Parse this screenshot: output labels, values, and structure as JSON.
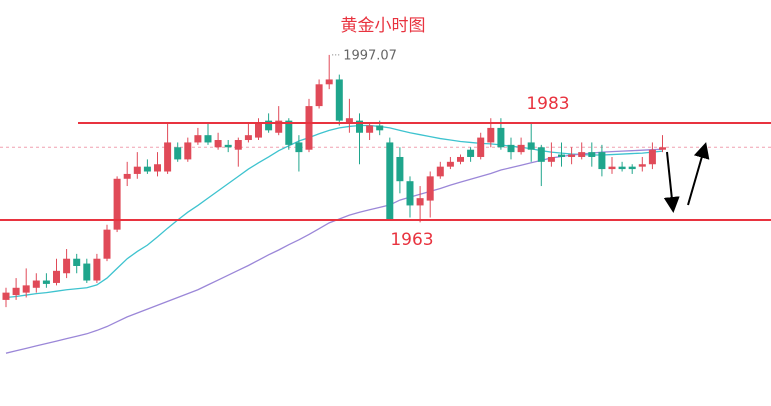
{
  "chart_data": {
    "type": "candlestick",
    "title": "黄金小时图",
    "max_label": 1997.07,
    "ylim": [
      1924.6,
      2008.4
    ],
    "up_color": "#e04a58",
    "down_color": "#1fa58c",
    "open": [
      1946.5,
      1947.5,
      1948,
      1949,
      1950.5,
      1950,
      1952,
      1955,
      1954,
      1950.5,
      1955,
      1961,
      1971.5,
      1972.5,
      1974,
      1973,
      1973,
      1978,
      1975.5,
      1979,
      1980.5,
      1978,
      1978.5,
      1977.5,
      1979.5,
      1980,
      1983.5,
      1981,
      1983.5,
      1979,
      1977.5,
      1986.5,
      1991,
      1992,
      1983,
      1983.5,
      1981,
      1982.5,
      1979,
      1976,
      1971,
      1966,
      1967,
      1972,
      1974,
      1975,
      1977.5,
      1976,
      1979,
      1982,
      1978.5,
      1977,
      1979,
      1978,
      1975,
      1976.5,
      1976,
      1976,
      1977,
      1977,
      1973.5,
      1974,
      1974,
      1974,
      1974.5,
      1977.5
    ],
    "high": [
      1949,
      1951,
      1953,
      1952,
      1952,
      1955,
      1957,
      1956,
      1955,
      1956,
      1962,
      1972,
      1975,
      1977,
      1975.5,
      1977,
      1983,
      1979,
      1980,
      1982,
      1983,
      1981,
      1979.5,
      1980,
      1983,
      1984,
      1985,
      1986.5,
      1984,
      1980.5,
      1988,
      1992,
      1997.07,
      1993,
      1988,
      1985,
      1983,
      1983.5,
      1980,
      1978,
      1972,
      1970,
      1973,
      1975,
      1976,
      1976.5,
      1978,
      1981,
      1984,
      1984,
      1980,
      1980,
      1983,
      1978.5,
      1979,
      1979,
      1978,
      1979,
      1979,
      1978.5,
      1976,
      1975,
      1974.5,
      1976,
      1979,
      1980.5
    ],
    "low": [
      1945,
      1946.5,
      1947,
      1948,
      1949,
      1949.5,
      1951,
      1952,
      1950,
      1950,
      1954.5,
      1960.5,
      1970,
      1971.5,
      1972.5,
      1972,
      1972.5,
      1975,
      1975,
      1978.5,
      1978.5,
      1977.5,
      1977,
      1974,
      1979,
      1979.5,
      1981,
      1980.5,
      1977.5,
      1973,
      1977,
      1986,
      1990,
      1982.5,
      1981,
      1974.5,
      1979.5,
      1980.5,
      1963,
      1968.5,
      1963.5,
      1962.5,
      1963.5,
      1971.5,
      1973.5,
      1974.5,
      1975,
      1975.5,
      1978,
      1977.5,
      1975.5,
      1976.5,
      1975,
      1970,
      1974,
      1974,
      1974.5,
      1975.5,
      1974,
      1972,
      1972.5,
      1973,
      1972.5,
      1973,
      1973.5,
      1977
    ],
    "close": [
      1948,
      1949,
      1949.5,
      1950.5,
      1949.8,
      1952.5,
      1955,
      1953.5,
      1950.5,
      1955,
      1961,
      1971.5,
      1972.5,
      1974,
      1973,
      1974.5,
      1979,
      1975.5,
      1979,
      1980.5,
      1979,
      1979.5,
      1978,
      1979.5,
      1980.5,
      1983,
      1981.5,
      1983.5,
      1978.5,
      1977,
      1986.5,
      1991,
      1992,
      1983.5,
      1984,
      1981,
      1982.5,
      1981.5,
      1963,
      1971,
      1966,
      1967.5,
      1972,
      1974,
      1975,
      1976,
      1976,
      1980,
      1982,
      1978,
      1977,
      1978.5,
      1977.5,
      1975,
      1976,
      1976,
      1976.5,
      1977,
      1976,
      1973.5,
      1974,
      1973.5,
      1973.5,
      1974.5,
      1977.5,
      1978
    ],
    "moving_averages": [
      {
        "color": "#3ec3cf",
        "values": [
          1947,
          1947.2,
          1947.5,
          1947.8,
          1948,
          1948.3,
          1948.6,
          1948.8,
          1949,
          1949.6,
          1951,
          1953,
          1955,
          1956.5,
          1957.8,
          1959.5,
          1961.3,
          1963,
          1964.6,
          1966,
          1967.5,
          1969,
          1970.5,
          1972,
          1973.5,
          1974.8,
          1976,
          1977.3,
          1978.3,
          1979.3,
          1980,
          1980.8,
          1981.5,
          1982,
          1982.3,
          1982.5,
          1982.5,
          1982.3,
          1982,
          1981.5,
          1981,
          1980.6,
          1980.2,
          1979.8,
          1979.5,
          1979.2,
          1979,
          1978.8,
          1978.7,
          1978.5,
          1978.2,
          1978,
          1977.7,
          1977.3,
          1977,
          1976.8,
          1976.6,
          1976.5,
          1976.4,
          1976.4,
          1976.5,
          1976.6,
          1976.7,
          1976.8,
          1977,
          1977.2
        ]
      },
      {
        "color": "#9b87d8",
        "values": [
          1935.5,
          1936,
          1936.5,
          1937,
          1937.5,
          1938,
          1938.5,
          1939,
          1939.5,
          1940.2,
          1941,
          1942,
          1943,
          1943.8,
          1944.6,
          1945.4,
          1946.2,
          1947,
          1947.8,
          1948.6,
          1949.6,
          1950.6,
          1951.6,
          1952.6,
          1953.6,
          1954.7,
          1955.8,
          1956.8,
          1957.9,
          1958.9,
          1960,
          1961.2,
          1962.4,
          1963.2,
          1964,
          1964.6,
          1965.1,
          1965.6,
          1966.1,
          1967.1,
          1967.7,
          1968.3,
          1968.9,
          1969.5,
          1970.2,
          1970.8,
          1971.4,
          1972,
          1972.6,
          1973.3,
          1973.8,
          1974.3,
          1974.8,
          1975.3,
          1975.8,
          1976.1,
          1976.4,
          1976.6,
          1976.8,
          1977,
          1977.1,
          1977.2,
          1977.3,
          1977.4,
          1977.5,
          1977.6
        ]
      }
    ],
    "levels": [
      {
        "value": 1983,
        "color": "#e8333f"
      },
      {
        "value": 1963,
        "color": "#e8333f"
      }
    ]
  }
}
